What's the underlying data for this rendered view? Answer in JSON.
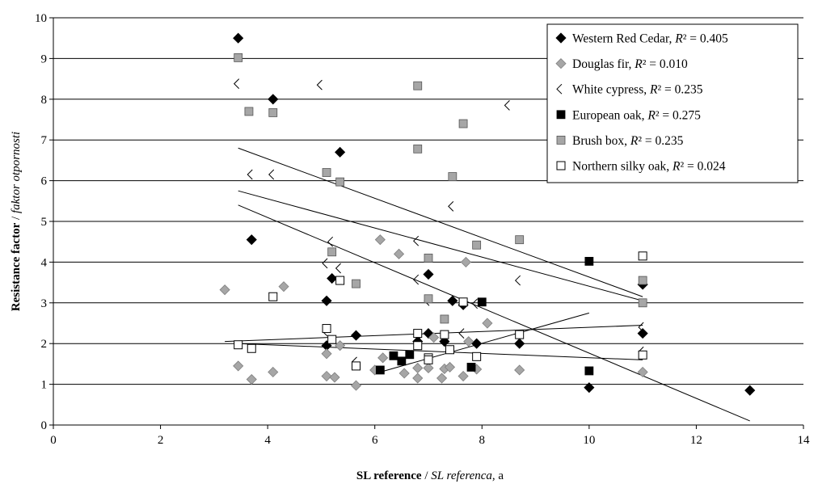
{
  "chart_data": {
    "type": "scatter",
    "title": "",
    "xlabel": {
      "bold": "SL reference",
      "sep": " / ",
      "italic": "SL referenca",
      "suffix": ", a"
    },
    "ylabel": {
      "bold": "Resistance factor",
      "sep": " / ",
      "italic": "faktor otpornosti"
    },
    "xlim": [
      0,
      14
    ],
    "ylim": [
      0,
      10
    ],
    "xticks": [
      "0",
      "2",
      "4",
      "6",
      "8",
      "10",
      "12",
      "14"
    ],
    "yticks": [
      "0",
      "1",
      "2",
      "3",
      "4",
      "5",
      "6",
      "7",
      "8",
      "9",
      "10"
    ],
    "grid": "horizontal",
    "legend_position": "top-right",
    "series": [
      {
        "name": "Western Red Cedar",
        "r2_label": "R² = 0.405",
        "marker": "diamond",
        "color": "#000000",
        "points": [
          [
            3.45,
            9.5
          ],
          [
            4.1,
            8.0
          ],
          [
            5.35,
            6.7
          ],
          [
            3.7,
            4.55
          ],
          [
            5.1,
            3.05
          ],
          [
            5.2,
            3.6
          ],
          [
            5.1,
            1.95
          ],
          [
            5.65,
            2.2
          ],
          [
            7.0,
            3.7
          ],
          [
            7.0,
            2.25
          ],
          [
            6.8,
            2.05
          ],
          [
            7.3,
            2.05
          ],
          [
            7.45,
            3.05
          ],
          [
            7.65,
            2.95
          ],
          [
            7.9,
            2.0
          ],
          [
            8.7,
            2.0
          ],
          [
            10.0,
            0.92
          ],
          [
            11.0,
            3.45
          ],
          [
            11.0,
            2.25
          ],
          [
            13.0,
            0.85
          ]
        ],
        "trend": [
          [
            3.45,
            5.4
          ],
          [
            13.0,
            0.1
          ]
        ]
      },
      {
        "name": "Douglas fir",
        "r2_label": "R² = 0.010",
        "marker": "diamond",
        "color": "#a6a6a6",
        "points": [
          [
            3.2,
            3.32
          ],
          [
            3.45,
            1.45
          ],
          [
            3.7,
            1.12
          ],
          [
            4.1,
            1.3
          ],
          [
            4.3,
            3.4
          ],
          [
            5.1,
            1.75
          ],
          [
            5.1,
            1.2
          ],
          [
            5.25,
            1.17
          ],
          [
            5.35,
            1.95
          ],
          [
            5.65,
            0.97
          ],
          [
            6.0,
            1.35
          ],
          [
            6.1,
            4.55
          ],
          [
            6.15,
            1.65
          ],
          [
            6.45,
            4.2
          ],
          [
            6.55,
            1.27
          ],
          [
            6.8,
            1.15
          ],
          [
            6.8,
            1.4
          ],
          [
            7.0,
            1.4
          ],
          [
            7.1,
            2.15
          ],
          [
            7.25,
            1.15
          ],
          [
            7.3,
            1.38
          ],
          [
            7.4,
            1.42
          ],
          [
            7.65,
            1.2
          ],
          [
            7.7,
            4.0
          ],
          [
            7.75,
            2.05
          ],
          [
            7.9,
            1.37
          ],
          [
            8.1,
            2.5
          ],
          [
            8.7,
            1.35
          ],
          [
            11.0,
            1.3
          ]
        ],
        "trend": [
          [
            3.2,
            2.05
          ],
          [
            11.0,
            2.45
          ]
        ]
      },
      {
        "name": "White cypress",
        "r2_label": "R² = 0.235",
        "marker": "open-diamond",
        "color": "#000000",
        "points": [
          [
            3.45,
            8.38
          ],
          [
            5.0,
            8.35
          ],
          [
            3.7,
            6.15
          ],
          [
            4.1,
            6.15
          ],
          [
            5.1,
            3.97
          ],
          [
            5.2,
            4.5
          ],
          [
            5.35,
            3.85
          ],
          [
            5.1,
            2.3
          ],
          [
            5.65,
            1.55
          ],
          [
            6.8,
            4.52
          ],
          [
            6.8,
            3.57
          ],
          [
            7.0,
            3.05
          ],
          [
            6.85,
            2.05
          ],
          [
            7.45,
            5.37
          ],
          [
            7.65,
            2.25
          ],
          [
            7.9,
            2.98
          ],
          [
            8.5,
            7.85
          ],
          [
            8.7,
            3.55
          ],
          [
            11.0,
            2.4
          ],
          [
            11.0,
            1.8
          ]
        ],
        "trend": [
          [
            3.45,
            6.8
          ],
          [
            11.0,
            3.15
          ]
        ]
      },
      {
        "name": "European oak",
        "r2_label": "R² = 0.275",
        "marker": "square",
        "color": "#000000",
        "points": [
          [
            6.1,
            1.35
          ],
          [
            6.35,
            1.7
          ],
          [
            6.5,
            1.57
          ],
          [
            6.65,
            1.73
          ],
          [
            7.8,
            1.42
          ],
          [
            8.0,
            3.02
          ],
          [
            10.0,
            4.02
          ],
          [
            10.0,
            1.33
          ]
        ],
        "trend": [
          [
            6.1,
            1.3
          ],
          [
            10.0,
            2.75
          ]
        ]
      },
      {
        "name": "Brush box",
        "r2_label": "R² = 0.235",
        "marker": "square",
        "color": "#a6a6a6",
        "points": [
          [
            3.45,
            9.02
          ],
          [
            3.65,
            7.7
          ],
          [
            4.1,
            7.67
          ],
          [
            5.1,
            6.2
          ],
          [
            5.35,
            5.97
          ],
          [
            5.2,
            4.25
          ],
          [
            5.65,
            3.47
          ],
          [
            6.8,
            8.33
          ],
          [
            6.8,
            6.78
          ],
          [
            7.0,
            4.1
          ],
          [
            7.0,
            3.1
          ],
          [
            7.3,
            2.6
          ],
          [
            7.45,
            6.1
          ],
          [
            7.65,
            7.4
          ],
          [
            7.9,
            4.42
          ],
          [
            8.7,
            4.55
          ],
          [
            11.0,
            3.55
          ],
          [
            11.0,
            3.0
          ]
        ],
        "trend": [
          [
            3.45,
            5.75
          ],
          [
            11.0,
            3.05
          ]
        ]
      },
      {
        "name": "Northern silky oak",
        "r2_label": "R² = 0.024",
        "marker": "open-square",
        "color": "#000000",
        "points": [
          [
            3.45,
            1.97
          ],
          [
            3.7,
            1.88
          ],
          [
            4.1,
            3.15
          ],
          [
            5.1,
            2.37
          ],
          [
            5.2,
            2.1
          ],
          [
            5.35,
            3.55
          ],
          [
            5.65,
            1.45
          ],
          [
            6.8,
            2.25
          ],
          [
            6.8,
            1.95
          ],
          [
            7.0,
            1.65
          ],
          [
            7.0,
            1.6
          ],
          [
            7.3,
            2.22
          ],
          [
            7.4,
            1.85
          ],
          [
            7.65,
            3.02
          ],
          [
            7.9,
            1.68
          ],
          [
            8.7,
            2.22
          ],
          [
            11.0,
            4.15
          ],
          [
            11.0,
            1.72
          ]
        ],
        "trend": [
          [
            3.45,
            2.0
          ],
          [
            11.0,
            1.6
          ]
        ]
      }
    ]
  }
}
